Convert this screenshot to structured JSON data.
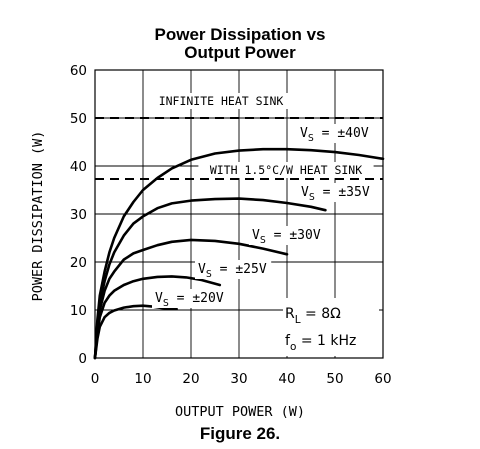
{
  "title_line1": "Power Dissipation vs",
  "title_line2": "Output Power",
  "caption": "Figure 26.",
  "chart_data": {
    "type": "line",
    "xlabel": "OUTPUT POWER (W)",
    "ylabel": "POWER DISSIPATION (W)",
    "xlim": [
      0,
      60
    ],
    "ylim": [
      0,
      60
    ],
    "xticks": [
      0,
      10,
      20,
      30,
      40,
      50,
      60
    ],
    "yticks": [
      0,
      10,
      20,
      30,
      40,
      50,
      60
    ],
    "grid": true,
    "reference_lines": [
      {
        "label": "INFINITE HEAT SINK",
        "y": 50,
        "style": "dashed"
      },
      {
        "label": "WITH 1.5°C/W HEAT SINK",
        "y": 37.3,
        "style": "dashed"
      }
    ],
    "series": [
      {
        "label_base": "V",
        "label_sub": "S",
        "label_rest": " = ±40V",
        "x": [
          0,
          0.5,
          1,
          2,
          3,
          4,
          6,
          8,
          10,
          13,
          16,
          20,
          25,
          30,
          35,
          40,
          45,
          50,
          55,
          60
        ],
        "y": [
          0,
          8,
          13,
          18,
          22,
          25,
          29.5,
          32.5,
          35,
          37.5,
          39.5,
          41.3,
          42.6,
          43.2,
          43.5,
          43.5,
          43.3,
          42.9,
          42.3,
          41.5
        ]
      },
      {
        "label_base": "V",
        "label_sub": "S",
        "label_rest": " = ±35V",
        "x": [
          0,
          0.5,
          1,
          2,
          3,
          4,
          6,
          8,
          10,
          13,
          16,
          20,
          25,
          30,
          35,
          40,
          45,
          48
        ],
        "y": [
          0,
          7,
          11.5,
          16,
          19.5,
          22,
          25.5,
          28,
          29.5,
          31.2,
          32.2,
          32.8,
          33.1,
          33.2,
          32.9,
          32.3,
          31.5,
          30.8
        ]
      },
      {
        "label_base": "V",
        "label_sub": "S",
        "label_rest": " = ±30V",
        "x": [
          0,
          0.5,
          1,
          2,
          3,
          4,
          6,
          8,
          10,
          13,
          16,
          20,
          25,
          30,
          35,
          40
        ],
        "y": [
          0,
          6,
          10,
          14,
          16.5,
          18,
          20.5,
          21.8,
          22.5,
          23.5,
          24.2,
          24.6,
          24.4,
          23.8,
          22.8,
          21.6
        ]
      },
      {
        "label_base": "V",
        "label_sub": "S",
        "label_rest": " = ±25V",
        "x": [
          0,
          0.5,
          1,
          2,
          3,
          4,
          6,
          8,
          10,
          13,
          16,
          19,
          22,
          26
        ],
        "y": [
          0,
          5,
          8.5,
          11.5,
          13,
          14,
          15.2,
          16,
          16.5,
          16.9,
          17,
          16.8,
          16.3,
          15.2
        ]
      },
      {
        "label_base": "V",
        "label_sub": "S",
        "label_rest": " = ±20V",
        "x": [
          0,
          0.5,
          1,
          2,
          3,
          4,
          6,
          8,
          10,
          12,
          14,
          17
        ],
        "y": [
          0,
          4,
          6.5,
          8.5,
          9.4,
          9.9,
          10.5,
          10.8,
          10.9,
          10.7,
          10.4,
          10.2
        ]
      }
    ],
    "annotations": [
      {
        "base": "R",
        "sub": "L",
        "rest": " = 8Ω"
      },
      {
        "base": "f",
        "sub": "o",
        "rest": " = 1 kHz"
      }
    ]
  }
}
